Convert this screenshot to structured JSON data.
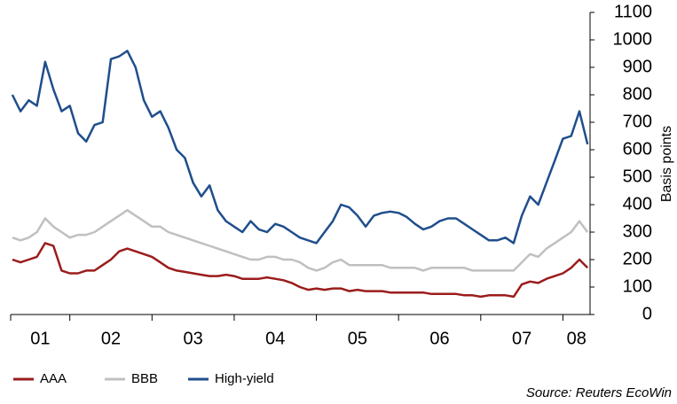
{
  "chart_data": {
    "type": "line",
    "y_label": "Basis points",
    "source": "Source: Reuters EcoWin",
    "x": [
      1.3,
      1.4,
      1.5,
      1.6,
      1.7,
      1.8,
      1.9,
      2.0,
      2.1,
      2.2,
      2.3,
      2.4,
      2.5,
      2.6,
      2.7,
      2.8,
      2.9,
      3.0,
      3.1,
      3.2,
      3.3,
      3.4,
      3.5,
      3.6,
      3.7,
      3.8,
      3.9,
      4.0,
      4.1,
      4.2,
      4.3,
      4.4,
      4.5,
      4.6,
      4.7,
      4.8,
      4.9,
      5.0,
      5.1,
      5.2,
      5.3,
      5.4,
      5.5,
      5.6,
      5.7,
      5.8,
      5.9,
      6.0,
      6.1,
      6.2,
      6.3,
      6.4,
      6.5,
      6.6,
      6.7,
      6.8,
      6.9,
      7.0,
      7.1,
      7.2,
      7.3,
      7.4,
      7.5,
      7.6,
      7.7,
      7.8,
      7.9,
      8.0,
      8.1,
      8.2,
      8.3
    ],
    "xlim": [
      1.28,
      8.33
    ],
    "xticks": [
      {
        "value": 1.5,
        "label": "01"
      },
      {
        "value": 2.5,
        "label": "02"
      },
      {
        "value": 3.5,
        "label": "03"
      },
      {
        "value": 4.5,
        "label": "04"
      },
      {
        "value": 5.5,
        "label": "05"
      },
      {
        "value": 6.5,
        "label": "06"
      },
      {
        "value": 7.5,
        "label": "07"
      },
      {
        "value": 8.5,
        "label": "08"
      }
    ],
    "ylim": [
      0,
      1100
    ],
    "yticks": [
      0,
      100,
      200,
      300,
      400,
      500,
      600,
      700,
      800,
      900,
      1000,
      1100
    ],
    "series": [
      {
        "name": "AAA",
        "color": "#9b1c1c",
        "values": [
          200,
          190,
          200,
          210,
          260,
          250,
          160,
          150,
          150,
          160,
          160,
          180,
          200,
          230,
          240,
          230,
          220,
          210,
          190,
          170,
          160,
          155,
          150,
          145,
          140,
          140,
          145,
          140,
          130,
          130,
          130,
          135,
          130,
          125,
          115,
          100,
          90,
          95,
          90,
          95,
          95,
          85,
          90,
          85,
          85,
          85,
          80,
          80,
          80,
          80,
          80,
          75,
          75,
          75,
          75,
          70,
          70,
          65,
          70,
          70,
          70,
          65,
          110,
          120,
          115,
          130,
          140,
          150,
          170,
          200,
          170
        ]
      },
      {
        "name": "BBB",
        "color": "#c0c0c0",
        "values": [
          280,
          270,
          280,
          300,
          350,
          320,
          300,
          280,
          290,
          290,
          300,
          320,
          340,
          360,
          380,
          360,
          340,
          320,
          320,
          300,
          290,
          280,
          270,
          260,
          250,
          240,
          230,
          220,
          210,
          200,
          200,
          210,
          210,
          200,
          200,
          190,
          170,
          160,
          170,
          190,
          200,
          180,
          180,
          180,
          180,
          180,
          170,
          170,
          170,
          170,
          160,
          170,
          170,
          170,
          170,
          170,
          160,
          160,
          160,
          160,
          160,
          160,
          190,
          220,
          210,
          240,
          260,
          280,
          300,
          340,
          300
        ]
      },
      {
        "name": "High-yield",
        "color": "#1f4e8c",
        "values": [
          800,
          740,
          780,
          760,
          920,
          820,
          740,
          760,
          660,
          630,
          690,
          700,
          930,
          940,
          960,
          900,
          780,
          720,
          740,
          680,
          600,
          570,
          480,
          430,
          470,
          380,
          340,
          320,
          300,
          340,
          310,
          300,
          330,
          320,
          300,
          280,
          270,
          260,
          300,
          340,
          400,
          390,
          360,
          320,
          360,
          370,
          375,
          370,
          355,
          330,
          310,
          320,
          340,
          350,
          350,
          330,
          310,
          290,
          270,
          270,
          280,
          260,
          360,
          430,
          400,
          480,
          560,
          640,
          650,
          740,
          620
        ]
      }
    ]
  }
}
